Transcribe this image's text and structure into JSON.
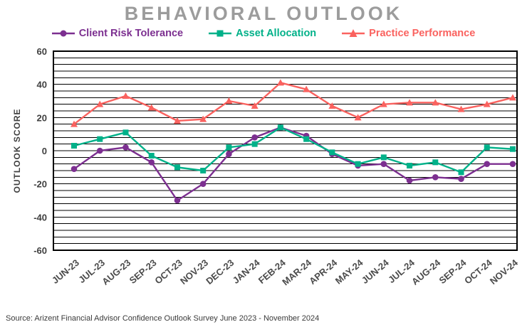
{
  "source": "Source: Arizent Financial Advisor Confidence Outlook Survey June 2023 - November 2024",
  "chart_data": {
    "type": "line",
    "title": "BEHAVIORAL OUTLOOK",
    "ylabel": "OUTLOOK SCORE",
    "xlabel": "",
    "ylim": [
      -60,
      60
    ],
    "yticks": [
      60,
      40,
      20,
      0,
      -20,
      -40,
      -60
    ],
    "grid": "dense-horizontal",
    "grid_step": 4,
    "legend_position": "top",
    "categories": [
      "JUN-23",
      "JUL-23",
      "AUG-23",
      "SEP-23",
      "OCT-23",
      "NOV-23",
      "DEC-23",
      "JAN-24",
      "FEB-24",
      "MAR-24",
      "APR-24",
      "MAY-24",
      "JUN-24",
      "JUL-24",
      "AUG-24",
      "SEP-24",
      "OCT-24",
      "NOV-24"
    ],
    "series": [
      {
        "name": "Client Risk Tolerance",
        "marker": "circle",
        "color": "#7c2f90",
        "values": [
          -11,
          0,
          2,
          -7,
          -30,
          -20,
          -2,
          8,
          14,
          9,
          -2,
          -9,
          -8,
          -18,
          -16,
          -17,
          -8,
          -8
        ]
      },
      {
        "name": "Asset Allocation",
        "marker": "square",
        "color": "#00b189",
        "values": [
          3,
          7,
          11,
          -3,
          -10,
          -12,
          2,
          4,
          14,
          7,
          -1,
          -8,
          -4,
          -9,
          -7,
          -13,
          2,
          1
        ]
      },
      {
        "name": "Practice Performance",
        "marker": "triangle",
        "color": "#fa625f",
        "values": [
          16,
          28,
          33,
          26,
          18,
          19,
          30,
          27,
          41,
          37,
          27,
          20,
          28,
          29,
          29,
          25,
          28,
          32
        ]
      }
    ]
  }
}
